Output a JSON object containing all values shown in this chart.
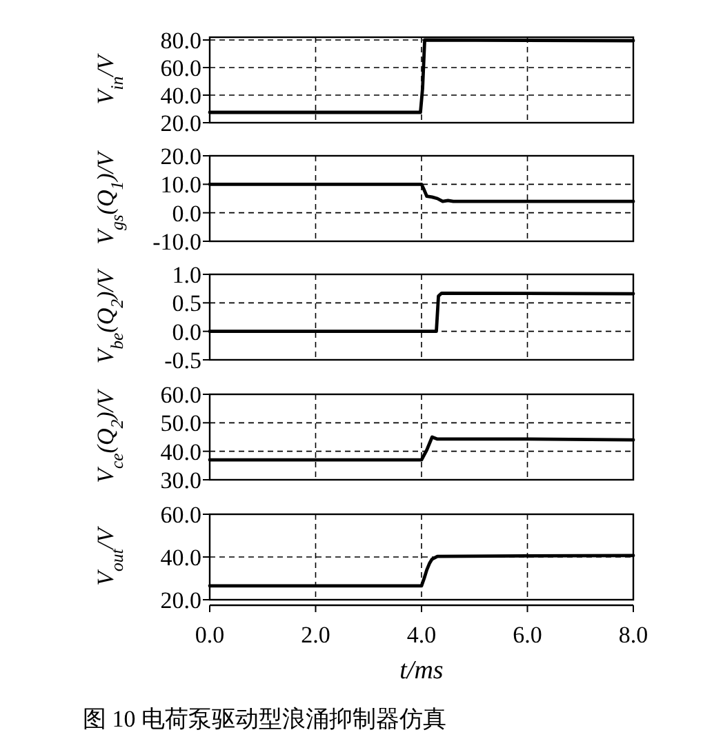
{
  "chart_data": [
    {
      "type": "line",
      "ylabel": "V$_{in}$/V",
      "x": [
        0,
        3.98,
        4.02,
        4.06,
        8
      ],
      "values": [
        27.5,
        27.5,
        45,
        80,
        79.5
      ],
      "xlim": [
        0,
        8
      ],
      "xticks": [
        {
          "value": 0,
          "label": null
        },
        {
          "value": 2,
          "label": null
        },
        {
          "value": 4,
          "label": null
        },
        {
          "value": 6,
          "label": null
        },
        {
          "value": 8,
          "label": null
        }
      ],
      "ylim": [
        20,
        82
      ],
      "yticks": [
        {
          "value": 20,
          "label": "20.0"
        },
        {
          "value": 40,
          "label": "40.0"
        },
        {
          "value": 60,
          "label": "60.0"
        },
        {
          "value": 80,
          "label": "80.0"
        }
      ],
      "grid": true,
      "tick_labels": "y"
    },
    {
      "type": "line",
      "ylabel": "V$_{gs}$(Q$_{1}$)/V",
      "x": [
        0,
        4.0,
        4.05,
        4.1,
        4.2,
        4.3,
        4.4,
        4.5,
        4.6,
        8
      ],
      "values": [
        10,
        10,
        8,
        5.8,
        5.5,
        5,
        4,
        4.3,
        4,
        4
      ],
      "xlim": [
        0,
        8
      ],
      "xticks": [
        {
          "value": 0,
          "label": null
        },
        {
          "value": 2,
          "label": null
        },
        {
          "value": 4,
          "label": null
        },
        {
          "value": 6,
          "label": null
        },
        {
          "value": 8,
          "label": null
        }
      ],
      "ylim": [
        -10,
        20
      ],
      "yticks": [
        {
          "value": -10,
          "label": "-10.0"
        },
        {
          "value": 0,
          "label": "0.0"
        },
        {
          "value": 10,
          "label": "10.0"
        },
        {
          "value": 20,
          "label": "20.0"
        }
      ],
      "grid": true,
      "tick_labels": "y"
    },
    {
      "type": "line",
      "ylabel": "V$_{be}$(Q$_{2}$)/V",
      "x": [
        0,
        4.28,
        4.32,
        4.38,
        8
      ],
      "values": [
        0,
        0,
        0.62,
        0.67,
        0.66
      ],
      "xlim": [
        0,
        8
      ],
      "xticks": [
        {
          "value": 0,
          "label": null
        },
        {
          "value": 2,
          "label": null
        },
        {
          "value": 4,
          "label": null
        },
        {
          "value": 6,
          "label": null
        },
        {
          "value": 8,
          "label": null
        }
      ],
      "ylim": [
        -0.5,
        1.0
      ],
      "yticks": [
        {
          "value": -0.5,
          "label": "-0.5"
        },
        {
          "value": 0,
          "label": "0.0"
        },
        {
          "value": 0.5,
          "label": "0.5"
        },
        {
          "value": 1.0,
          "label": "1.0"
        }
      ],
      "grid": true,
      "tick_labels": "y"
    },
    {
      "type": "line",
      "ylabel": "V$_{ce}$(Q$_{2}$)/V",
      "x": [
        0,
        4.0,
        4.1,
        4.2,
        4.3,
        6,
        8
      ],
      "values": [
        37,
        37,
        40.5,
        45,
        44.3,
        44.3,
        44
      ],
      "xlim": [
        0,
        8
      ],
      "xticks": [
        {
          "value": 0,
          "label": null
        },
        {
          "value": 2,
          "label": null
        },
        {
          "value": 4,
          "label": null
        },
        {
          "value": 6,
          "label": null
        },
        {
          "value": 8,
          "label": null
        }
      ],
      "ylim": [
        30,
        60
      ],
      "yticks": [
        {
          "value": 30,
          "label": "30.0"
        },
        {
          "value": 40,
          "label": "40.0"
        },
        {
          "value": 50,
          "label": "50.0"
        },
        {
          "value": 60,
          "label": "60.0"
        }
      ],
      "grid": true,
      "tick_labels": "y"
    },
    {
      "type": "line",
      "ylabel": "V$_{out}$/V",
      "xlabel": "t/ms",
      "annotations": [
        "图 10 电荷泵驱动型浪涌抑制器仿真"
      ],
      "x": [
        0,
        4.0,
        4.05,
        4.1,
        4.15,
        4.2,
        4.3,
        6,
        8
      ],
      "values": [
        26.5,
        26.5,
        30,
        34,
        37,
        39,
        40.3,
        40.5,
        40.7
      ],
      "xlim": [
        0,
        8
      ],
      "xticks": [
        {
          "value": 0,
          "label": "0.0"
        },
        {
          "value": 2,
          "label": "2.0"
        },
        {
          "value": 4,
          "label": "4.0"
        },
        {
          "value": 6,
          "label": "6.0"
        },
        {
          "value": 8,
          "label": "8.0"
        }
      ],
      "ylim": [
        20,
        60
      ],
      "yticks": [
        {
          "value": 20,
          "label": "20.0"
        },
        {
          "value": 40,
          "label": "40.0"
        },
        {
          "value": 60,
          "label": "60.0"
        }
      ],
      "grid": true
    }
  ]
}
